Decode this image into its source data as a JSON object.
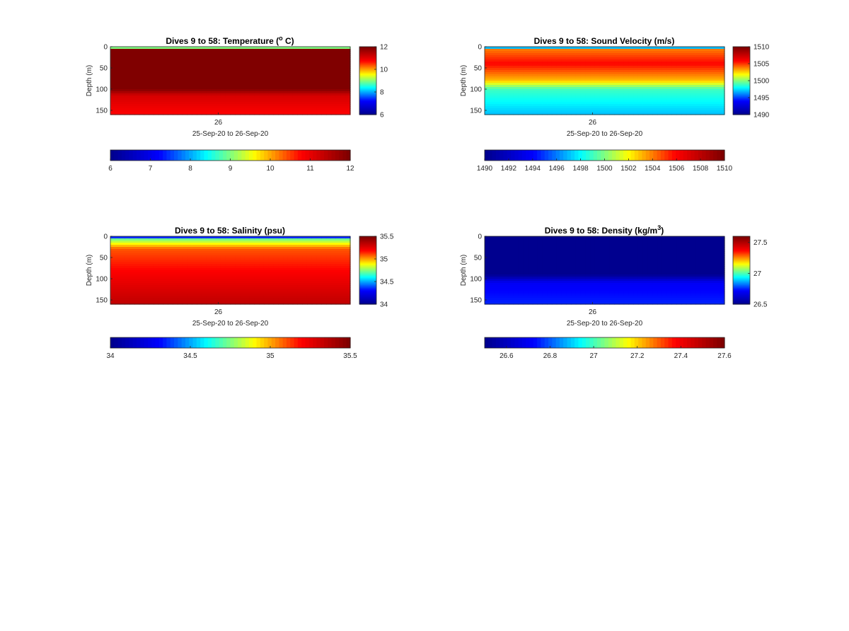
{
  "figure": {
    "colormap": "jet",
    "colormap_stops": [
      "#00008F",
      "#0000FF",
      "#00FFFF",
      "#FFFF00",
      "#FF0000",
      "#800000"
    ]
  },
  "chart_data": [
    {
      "type": "heatmap",
      "variable": "temperature",
      "title": "Dives 9 to 58: Temperature (",
      "title_sup": "o",
      "title_tail": " C)",
      "ylabel": "Depth (m)",
      "xlabel": "25-Sep-20 to 26-Sep-20",
      "x_ticks": [
        "26"
      ],
      "y_ticks": [
        "0",
        "50",
        "100",
        "150"
      ],
      "ylim": [
        0,
        160
      ],
      "y_reversed": true,
      "clim": [
        6,
        12
      ],
      "side_colorbar_ticks": [
        "6",
        "8",
        "10",
        "12"
      ],
      "bottom_colorbar_ticks": [
        "6",
        "7",
        "8",
        "9",
        "10",
        "11",
        "12"
      ],
      "dives": 50,
      "profile_by_depth": [
        [
          0,
          6
        ],
        [
          5,
          12
        ],
        [
          100,
          12
        ],
        [
          115,
          11.2
        ],
        [
          160,
          10.8
        ]
      ],
      "mask_floor_m": [
        160,
        160,
        160,
        160,
        160,
        160,
        160,
        160,
        160,
        160,
        160,
        160,
        160,
        160,
        160,
        160,
        160,
        160,
        160,
        160,
        160,
        160,
        160,
        160,
        160,
        160,
        160,
        160,
        160,
        160,
        160,
        160,
        160,
        160,
        160,
        160,
        160,
        160,
        160,
        160,
        160,
        160,
        160,
        160,
        160,
        160,
        160,
        160,
        160,
        160
      ]
    },
    {
      "type": "heatmap",
      "variable": "sound_velocity",
      "title": "Dives 9 to 58: Sound Velocity (m/s)",
      "ylabel": "Depth (m)",
      "xlabel": "25-Sep-20 to 26-Sep-20",
      "x_ticks": [
        "26"
      ],
      "y_ticks": [
        "0",
        "50",
        "100",
        "150"
      ],
      "ylim": [
        0,
        160
      ],
      "y_reversed": true,
      "clim": [
        1490,
        1510
      ],
      "side_colorbar_ticks": [
        "1490",
        "1495",
        "1500",
        "1505",
        "1510"
      ],
      "bottom_colorbar_ticks": [
        "1490",
        "1492",
        "1494",
        "1496",
        "1498",
        "1500",
        "1502",
        "1504",
        "1506",
        "1508",
        "1510"
      ],
      "dives": 50,
      "profile_by_depth": [
        [
          0,
          1490
        ],
        [
          5,
          1504
        ],
        [
          40,
          1506
        ],
        [
          80,
          1503
        ],
        [
          100,
          1499
        ],
        [
          160,
          1497
        ]
      ],
      "mask_floor_m": [
        160,
        160,
        160,
        160,
        160,
        160,
        160,
        160,
        160,
        160,
        160,
        160,
        160,
        160,
        160,
        160,
        160,
        160,
        160,
        160,
        160,
        160,
        160,
        160,
        160,
        160,
        160,
        160,
        160,
        160,
        160,
        160,
        160,
        160,
        160,
        160,
        160,
        160,
        160,
        160,
        160,
        160,
        160,
        160,
        160,
        160,
        160,
        160,
        160,
        160
      ]
    },
    {
      "type": "heatmap",
      "variable": "salinity",
      "title": "Dives 9 to 58: Salinity (psu)",
      "ylabel": "Depth (m)",
      "xlabel": "25-Sep-20 to 26-Sep-20",
      "x_ticks": [
        "26"
      ],
      "y_ticks": [
        "0",
        "50",
        "100",
        "150"
      ],
      "ylim": [
        0,
        160
      ],
      "y_reversed": true,
      "clim": [
        34,
        35.5
      ],
      "side_colorbar_ticks": [
        "34",
        "34.5",
        "35",
        "35.5"
      ],
      "bottom_colorbar_ticks": [
        "34",
        "34.5",
        "35",
        "35.5"
      ],
      "dives": 50,
      "profile_by_depth": [
        [
          0,
          34
        ],
        [
          5,
          34.7
        ],
        [
          30,
          35.1
        ],
        [
          80,
          35.2
        ],
        [
          160,
          35.35
        ]
      ],
      "mask_floor_m": [
        160,
        160,
        160,
        160,
        160,
        160,
        160,
        160,
        160,
        160,
        160,
        160,
        160,
        160,
        160,
        160,
        160,
        160,
        160,
        160,
        160,
        160,
        160,
        160,
        160,
        160,
        160,
        160,
        160,
        160,
        160,
        160,
        160,
        160,
        160,
        160,
        160,
        160,
        160,
        160,
        160,
        160,
        160,
        160,
        160,
        160,
        160,
        160,
        160,
        160
      ]
    },
    {
      "type": "heatmap",
      "variable": "density",
      "title": "Dives 9 to 58: Density (kg/m",
      "title_sup": "3",
      "title_tail": ")",
      "ylabel": "Depth (m)",
      "xlabel": "25-Sep-20 to 26-Sep-20",
      "x_ticks": [
        "26"
      ],
      "y_ticks": [
        "0",
        "50",
        "100",
        "150"
      ],
      "ylim": [
        0,
        160
      ],
      "y_reversed": true,
      "clim": [
        26.5,
        27.6
      ],
      "side_colorbar_ticks": [
        "26.5",
        "27",
        "27.5"
      ],
      "bottom_colorbar_ticks": [
        "26.6",
        "26.8",
        "27",
        "27.2",
        "27.4",
        "27.6"
      ],
      "dives": 50,
      "profile_by_depth": [
        [
          0,
          26.5
        ],
        [
          90,
          26.5
        ],
        [
          110,
          26.7
        ],
        [
          160,
          26.75
        ]
      ],
      "mask_floor_m": [
        160,
        160,
        160,
        160,
        160,
        160,
        160,
        160,
        160,
        160,
        160,
        160,
        160,
        160,
        160,
        160,
        160,
        160,
        160,
        160,
        160,
        160,
        160,
        160,
        160,
        160,
        160,
        160,
        160,
        160,
        160,
        160,
        160,
        160,
        160,
        160,
        160,
        160,
        160,
        160,
        160,
        160,
        160,
        160,
        160,
        160,
        160,
        160,
        160,
        160
      ]
    }
  ]
}
